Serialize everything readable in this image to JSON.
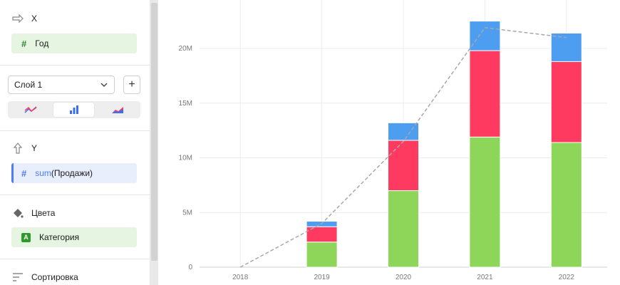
{
  "sidebar": {
    "x_section": {
      "title": "X",
      "field": "Год"
    },
    "layer": {
      "select_value": "Слой 1",
      "add_label": "+"
    },
    "y_section": {
      "title": "Y",
      "field_func": "sum",
      "field_arg": "(Продажи)"
    },
    "colors_section": {
      "title": "Цвета",
      "field": "Категория",
      "badge": "A"
    },
    "sort_section": {
      "title": "Сортировка"
    },
    "icons": [
      "arrow-right-icon",
      "hash-icon",
      "chevron-down-icon",
      "line-chart-icon",
      "bar-chart-icon",
      "area-chart-icon",
      "arrow-up-icon",
      "paint-bucket-icon",
      "sort-icon"
    ]
  },
  "chart_data": {
    "type": "bar",
    "categories": [
      "2018",
      "2019",
      "2020",
      "2021",
      "2022"
    ],
    "series": [
      {
        "color": "#8dd65a",
        "values": [
          0,
          2.3,
          7.0,
          11.9,
          11.4
        ]
      },
      {
        "color": "#ff3a60",
        "values": [
          0,
          1.4,
          4.6,
          7.9,
          7.4
        ]
      },
      {
        "color": "#4d9df0",
        "values": [
          0,
          0.5,
          1.6,
          2.7,
          2.6
        ]
      }
    ],
    "line": {
      "values": [
        0,
        4.0,
        11.5,
        21.9,
        21.0
      ],
      "color": "#a8a8a8",
      "style": "dashed"
    },
    "yticks": [
      0,
      5,
      10,
      15,
      20
    ],
    "ytick_labels": [
      "0",
      "5M",
      "10M",
      "15M",
      "20M"
    ],
    "ylim": [
      0,
      25
    ],
    "grid": true,
    "stacked": true
  }
}
